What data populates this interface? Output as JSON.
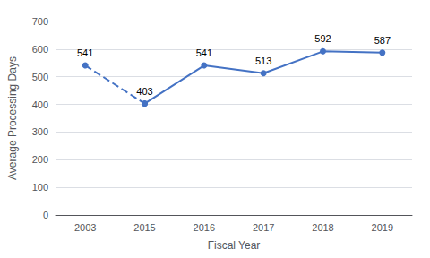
{
  "chart_data": {
    "type": "line",
    "categories": [
      "2003",
      "2015",
      "2016",
      "2017",
      "2018",
      "2019"
    ],
    "series": [
      {
        "color": "#4472C4",
        "line_style": "dashed",
        "marker": "circle",
        "values": [
          541,
          403,
          null,
          null,
          null,
          null
        ]
      },
      {
        "color": "#4472C4",
        "line_style": "solid",
        "marker": "circle",
        "values": [
          null,
          403,
          541,
          513,
          592,
          587
        ]
      }
    ],
    "xlabel": "Fiscal Year",
    "ylabel": "Average Processing Days",
    "ylim": [
      0,
      700
    ],
    "yticks": [
      0,
      100,
      200,
      300,
      400,
      500,
      600,
      700
    ],
    "grid": true,
    "data_labels": true
  }
}
